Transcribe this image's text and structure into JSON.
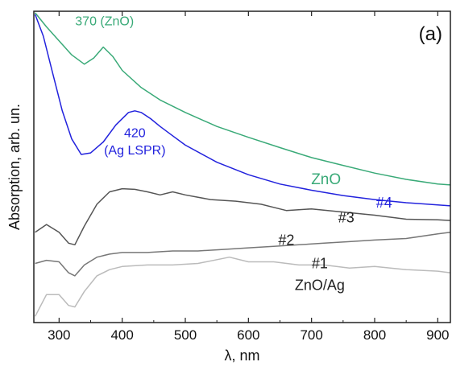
{
  "chart_data": {
    "type": "line",
    "panel_label": "(a)",
    "xlabel": "λ, nm",
    "ylabel": "Absorption, arb. un.",
    "xlim": [
      260,
      920
    ],
    "ylim": [
      0,
      10
    ],
    "y_tick_labels": "none",
    "x_ticks": [
      300,
      400,
      500,
      600,
      700,
      800,
      900
    ],
    "x_tick_labels": [
      "300",
      "400",
      "500",
      "600",
      "700",
      "800",
      "900"
    ],
    "grid": false,
    "legend": "none (curves labeled inline)",
    "colors": {
      "ZnO": "#3aaa78",
      "#4": "#2222dd",
      "#3": "#555555",
      "#2": "#777777",
      "#1": "#bbbbbb",
      "axes": "#222222"
    },
    "series": [
      {
        "name": "ZnO",
        "x": [
          262,
          280,
          300,
          320,
          340,
          355,
          370,
          385,
          400,
          430,
          460,
          500,
          550,
          600,
          650,
          700,
          750,
          800,
          850,
          900,
          920
        ],
        "y": [
          9.95,
          9.5,
          9.05,
          8.6,
          8.3,
          8.5,
          8.85,
          8.55,
          8.1,
          7.55,
          7.15,
          6.75,
          6.3,
          5.95,
          5.62,
          5.3,
          5.05,
          4.8,
          4.6,
          4.45,
          4.42
        ]
      },
      {
        "name": "#4",
        "x": [
          262,
          275,
          290,
          305,
          320,
          335,
          350,
          370,
          390,
          410,
          420,
          430,
          445,
          460,
          480,
          500,
          550,
          600,
          650,
          700,
          750,
          800,
          850,
          900,
          920
        ],
        "y": [
          9.9,
          9.2,
          8.0,
          6.8,
          5.9,
          5.4,
          5.45,
          5.8,
          6.35,
          6.75,
          6.8,
          6.75,
          6.55,
          6.3,
          6.0,
          5.7,
          5.15,
          4.75,
          4.45,
          4.25,
          4.08,
          3.95,
          3.85,
          3.78,
          3.75
        ]
      },
      {
        "name": "#3",
        "x": [
          262,
          280,
          300,
          315,
          325,
          340,
          360,
          380,
          400,
          420,
          440,
          460,
          480,
          500,
          540,
          580,
          620,
          660,
          700,
          750,
          800,
          850,
          900,
          920
        ],
        "y": [
          2.9,
          3.15,
          2.9,
          2.55,
          2.5,
          3.1,
          3.8,
          4.2,
          4.3,
          4.28,
          4.2,
          4.1,
          4.2,
          4.1,
          3.95,
          3.9,
          3.8,
          3.6,
          3.65,
          3.55,
          3.45,
          3.32,
          3.3,
          3.28
        ]
      },
      {
        "name": "#2",
        "x": [
          262,
          280,
          300,
          315,
          325,
          340,
          360,
          380,
          400,
          440,
          480,
          520,
          560,
          600,
          640,
          680,
          720,
          760,
          800,
          850,
          900,
          920
        ],
        "y": [
          1.9,
          2.0,
          1.95,
          1.6,
          1.5,
          1.85,
          2.1,
          2.2,
          2.25,
          2.25,
          2.3,
          2.3,
          2.35,
          2.4,
          2.45,
          2.5,
          2.55,
          2.6,
          2.65,
          2.7,
          2.85,
          2.9
        ]
      },
      {
        "name": "#1",
        "x": [
          262,
          280,
          300,
          315,
          325,
          340,
          360,
          380,
          400,
          440,
          480,
          520,
          570,
          600,
          640,
          680,
          720,
          760,
          800,
          850,
          900,
          920
        ],
        "y": [
          0.2,
          0.9,
          0.9,
          0.55,
          0.5,
          1.0,
          1.5,
          1.7,
          1.8,
          1.85,
          1.85,
          1.9,
          2.1,
          1.95,
          1.95,
          1.85,
          1.85,
          1.75,
          1.8,
          1.7,
          1.65,
          1.6
        ]
      }
    ],
    "annotations": [
      {
        "text": "370 (ZnO)",
        "x": 372,
        "y": 9.55,
        "color": "#3aaa78",
        "anchor": "middle",
        "size": 16
      },
      {
        "text": "420",
        "x": 420,
        "y": 5.95,
        "color": "#2222dd",
        "anchor": "middle",
        "size": 16
      },
      {
        "text": "(Ag LSPR)",
        "x": 420,
        "y": 5.4,
        "color": "#2222dd",
        "anchor": "middle",
        "size": 16
      },
      {
        "text": "ZnO",
        "x": 723,
        "y": 4.45,
        "color": "#3aaa78",
        "anchor": "middle",
        "size": 19
      },
      {
        "text": "#4",
        "x": 815,
        "y": 3.7,
        "color": "#2222dd",
        "anchor": "middle",
        "size": 18
      },
      {
        "text": "#3",
        "x": 755,
        "y": 3.22,
        "color": "#222222",
        "anchor": "middle",
        "size": 18
      },
      {
        "text": "#2",
        "x": 660,
        "y": 2.5,
        "color": "#222222",
        "anchor": "middle",
        "size": 18
      },
      {
        "text": "#1",
        "x": 713,
        "y": 1.75,
        "color": "#222222",
        "anchor": "middle",
        "size": 18
      },
      {
        "text": "ZnO/Ag",
        "x": 713,
        "y": 1.05,
        "color": "#222222",
        "anchor": "middle",
        "size": 18
      }
    ]
  }
}
